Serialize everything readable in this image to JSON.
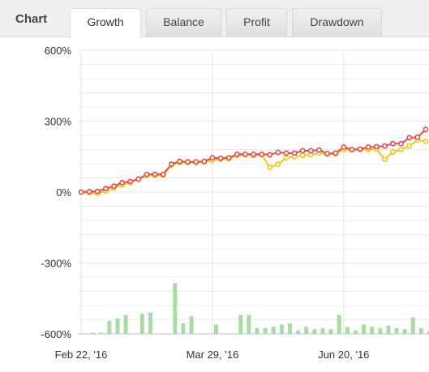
{
  "header": {
    "title": "Chart",
    "tabs": [
      "Growth",
      "Balance",
      "Profit",
      "Drawdown"
    ],
    "active_tab": "Growth"
  },
  "colors": {
    "equity_line": "#e84a4a",
    "balance_line": "#f5c518",
    "bars": "#a9dca2",
    "grid": "#ececec"
  },
  "chart_data": {
    "type": "line",
    "ylim": [
      -600,
      600
    ],
    "y_ticks": [
      "600%",
      "300%",
      "0%",
      "-300%",
      "-600%"
    ],
    "x_ticks": [
      "Feb 22, '16",
      "Mar 29, '16",
      "Jun 20, '16"
    ],
    "grid": true,
    "series": [
      {
        "color": "#e84a4a",
        "values": [
          0,
          2,
          3,
          15,
          25,
          40,
          45,
          55,
          75,
          75,
          75,
          118,
          130,
          128,
          128,
          130,
          145,
          143,
          145,
          160,
          160,
          160,
          160,
          158,
          168,
          165,
          165,
          175,
          175,
          178,
          163,
          165,
          190,
          180,
          182,
          190,
          192,
          195,
          205,
          205,
          230,
          232,
          265
        ]
      },
      {
        "color": "#f5c518",
        "values": [
          0,
          -2,
          -5,
          5,
          18,
          30,
          40,
          55,
          70,
          72,
          72,
          115,
          125,
          125,
          125,
          128,
          135,
          140,
          142,
          155,
          158,
          155,
          158,
          105,
          118,
          145,
          150,
          155,
          158,
          165,
          160,
          162,
          180,
          178,
          180,
          180,
          182,
          138,
          170,
          180,
          195,
          220,
          215
        ]
      },
      {
        "color": "#a9dca2",
        "values": [
          0,
          5,
          5,
          55,
          65,
          80,
          0,
          85,
          90,
          0,
          0,
          215,
          45,
          75,
          0,
          0,
          40,
          0,
          0,
          80,
          80,
          25,
          25,
          30,
          40,
          45,
          15,
          30,
          20,
          25,
          20,
          80,
          30,
          15,
          40,
          30,
          25,
          35,
          25,
          20,
          70,
          25,
          10
        ]
      }
    ]
  }
}
